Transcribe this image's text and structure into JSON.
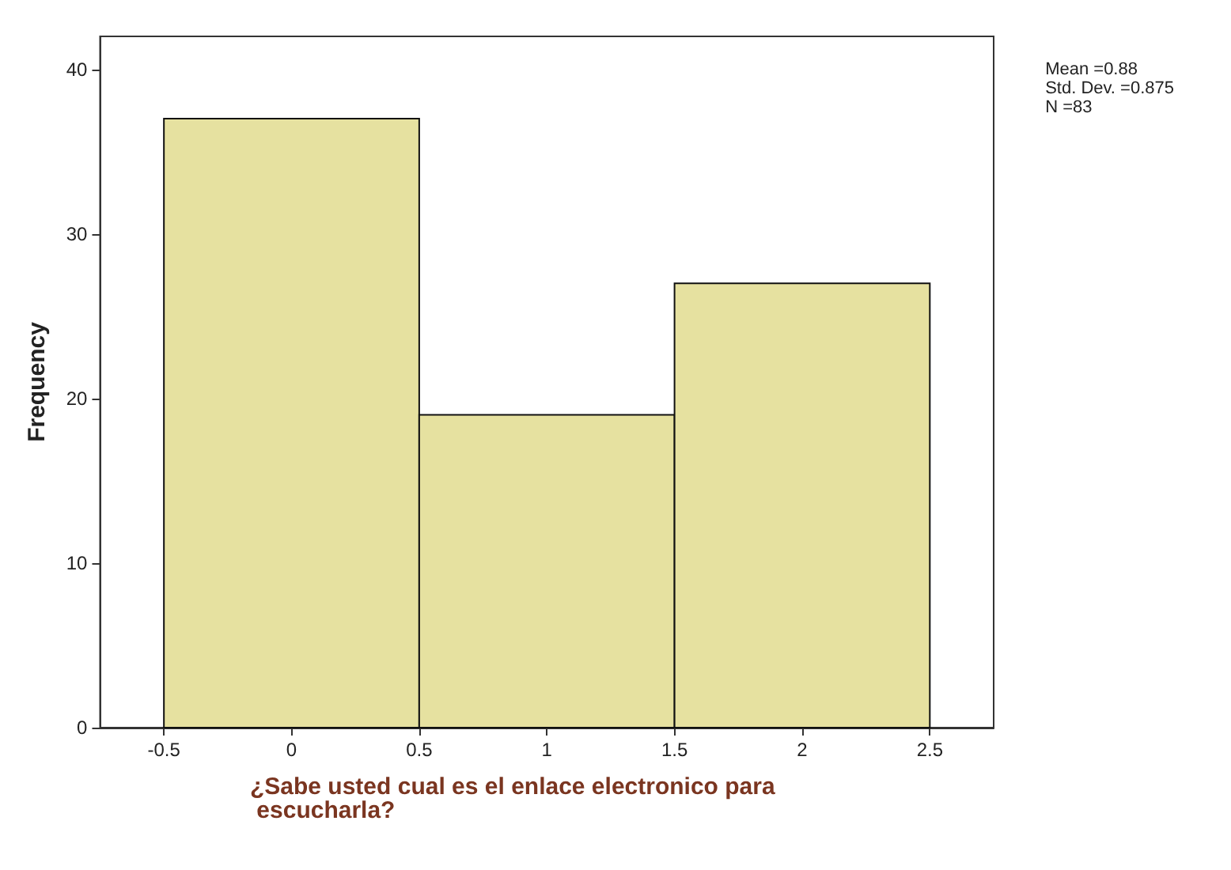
{
  "chart_data": {
    "type": "histogram",
    "xlabel": "¿Sabe usted cual es el enlace electronico para escucharla?",
    "ylabel": "Frequency",
    "bins": [
      -0.5,
      0.5,
      1.5,
      2.5
    ],
    "values": [
      37,
      19,
      27
    ],
    "color": "#e6e1a0",
    "xlim": [
      -0.75,
      2.75
    ],
    "xticks": [
      -0.5,
      0,
      0.5,
      1,
      1.5,
      2,
      2.5
    ],
    "ylim": [
      0,
      42
    ],
    "yticks": [
      0,
      10,
      20,
      30,
      40
    ],
    "annotations": [
      "Mean =0.88",
      "Std. Dev. =0.875",
      "N =83"
    ]
  }
}
